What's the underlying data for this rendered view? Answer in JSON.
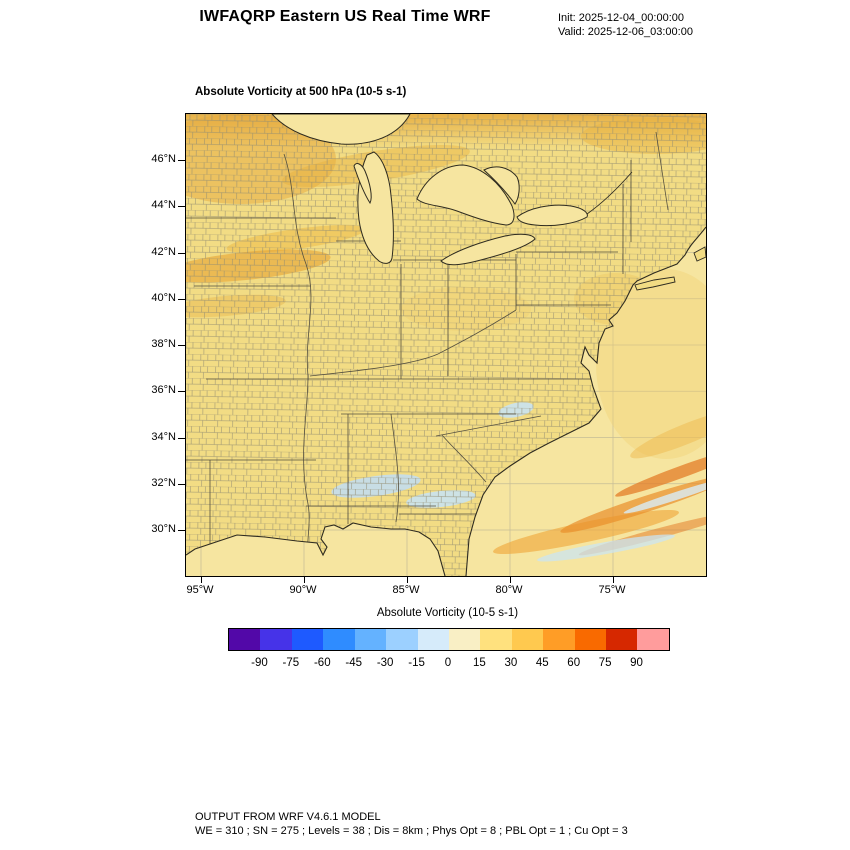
{
  "header": {
    "title": "IWFAQRP Eastern US Real Time WRF",
    "init_line": "Init: 2025-12-04_00:00:00",
    "valid_line": "Valid: 2025-12-06_03:00:00"
  },
  "map": {
    "title": "Absolute Vorticity at 500 hPa   (10-5 s-1)",
    "lat_ticks": [
      "46°N",
      "44°N",
      "42°N",
      "40°N",
      "38°N",
      "36°N",
      "34°N",
      "32°N",
      "30°N"
    ],
    "lon_ticks": [
      "95°W",
      "90°W",
      "85°W",
      "80°W",
      "75°W"
    ]
  },
  "colorbar": {
    "title": "Absolute Vorticity  (10-5 s-1)",
    "tick_labels": [
      "-90",
      "-75",
      "-60",
      "-45",
      "-30",
      "-15",
      "0",
      "15",
      "30",
      "45",
      "60",
      "75",
      "90"
    ],
    "colors": [
      "#5208A8",
      "#4633E8",
      "#1E5AFF",
      "#2F8CFF",
      "#64B2FF",
      "#9CD0FF",
      "#D6EBFA",
      "#F9EFC5",
      "#FFE17E",
      "#FFC94F",
      "#FF9D26",
      "#F96A00",
      "#D62800",
      "#FF9C9C"
    ]
  },
  "footer": {
    "line1": "OUTPUT FROM WRF V4.6.1 MODEL",
    "line2": "WE = 310 ; SN = 275 ; Levels = 38 ; Dis = 8km ; Phys Opt = 8 ; PBL Opt = 1 ; Cu Opt = 3"
  },
  "chart_data": {
    "type": "heatmap",
    "title": "Absolute Vorticity at 500 hPa (10-5 s-1)",
    "region": "Eastern US (WRF real-time domain)",
    "x": {
      "label": "Longitude",
      "ticks": [
        "95°W",
        "90°W",
        "85°W",
        "80°W",
        "75°W"
      ]
    },
    "y": {
      "label": "Latitude",
      "ticks": [
        "46°N",
        "44°N",
        "42°N",
        "40°N",
        "38°N",
        "36°N",
        "34°N",
        "32°N",
        "30°N"
      ]
    },
    "colorbar": {
      "label": "Absolute Vorticity  (10-5 s-1)",
      "ticks": [
        -90,
        -75,
        -60,
        -45,
        -30,
        -15,
        0,
        15,
        30,
        45,
        60,
        75,
        90
      ],
      "range": [
        -105,
        105
      ]
    },
    "field_summary": "Field is mostly weakly positive (about 5-20 x10-5 s-1, pale yellow) over the whole domain; stronger gold/orange maxima (25-45) in diagonal bands over the upper Midwest (Minnesota-Iowa-Wisconsin) and along the top of the domain, plus bright orange SW-NE oriented vorticity filaments offshore of the Southeast US coast; small weakly negative pale-blue patches (0 to -15) over Mississippi/Alabama/Georgia, the southern Appalachians, and offshore near 31-33N."
  }
}
